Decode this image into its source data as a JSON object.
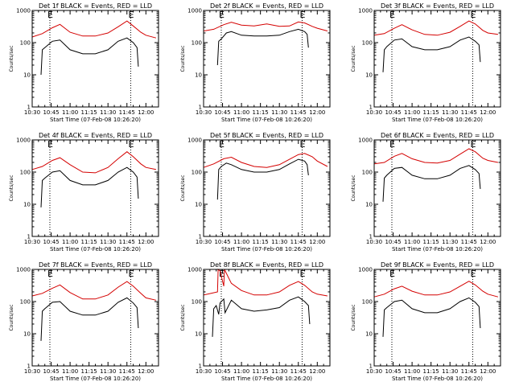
{
  "chart_data": {
    "type": "line",
    "scale": "log",
    "ylim": [
      1,
      1000
    ],
    "yticks": [
      1,
      10,
      100,
      1000
    ],
    "ytick_labels": [
      "1",
      "10",
      "100",
      "1000"
    ],
    "xlim": [
      "10:30",
      "12:10"
    ],
    "xticks": [
      "10:30",
      "10:45",
      "11:00",
      "11:15",
      "11:30",
      "11:45",
      "12:00"
    ],
    "xlabel": "Start Time (07-Feb-08 10:26:20)",
    "ylabel": "Counts/sec",
    "vertical_dotted_lines": [
      "10:44",
      "11:48"
    ],
    "markers": [
      {
        "time": "10:44",
        "label": "E"
      },
      {
        "time": "11:48",
        "label": "E"
      }
    ],
    "colors": {
      "events": "#000000",
      "lld": "#d40000"
    },
    "panels": [
      {
        "title": "Det 1f BLACK = Events, RED = LLD",
        "series": [
          {
            "legend_word": "LLD",
            "color": "red",
            "times": [
              "10:30",
              "10:38",
              "10:46",
              "10:52",
              "11:00",
              "11:10",
              "11:20",
              "11:30",
              "11:38",
              "11:45",
              "11:50",
              "11:56",
              "12:00",
              "12:08"
            ],
            "values": [
              150,
              190,
              290,
              370,
              210,
              160,
              160,
              200,
              310,
              470,
              330,
              210,
              170,
              140
            ]
          },
          {
            "legend_word": "Events",
            "color": "black",
            "times": [
              "10:37",
              "10:38",
              "10:40",
              "10:46",
              "10:52",
              "11:00",
              "11:10",
              "11:20",
              "11:30",
              "11:38",
              "11:45",
              "11:50",
              "11:53",
              "11:54"
            ],
            "values": [
              10,
              60,
              70,
              110,
              120,
              60,
              45,
              45,
              60,
              110,
              140,
              100,
              70,
              18
            ]
          }
        ]
      },
      {
        "title": "Det 2f BLACK = Events, RED = LLD",
        "series": [
          {
            "legend_word": "LLD",
            "color": "red",
            "times": [
              "10:30",
              "10:38",
              "10:46",
              "10:52",
              "11:00",
              "11:10",
              "11:20",
              "11:30",
              "11:38",
              "11:45",
              "11:50",
              "11:56",
              "12:00",
              "12:08"
            ],
            "values": [
              230,
              260,
              360,
              430,
              350,
              330,
              380,
              320,
              330,
              440,
              410,
              320,
              280,
              230
            ]
          },
          {
            "legend_word": "Events",
            "color": "black",
            "times": [
              "10:41",
              "10:42",
              "10:44",
              "10:48",
              "10:52",
              "11:00",
              "11:10",
              "11:20",
              "11:30",
              "11:38",
              "11:45",
              "11:50",
              "11:52",
              "11:53"
            ],
            "values": [
              20,
              110,
              130,
              200,
              220,
              170,
              160,
              160,
              170,
              220,
              260,
              220,
              180,
              70
            ]
          }
        ]
      },
      {
        "title": "Det 3f BLACK = Events, RED = LLD",
        "series": [
          {
            "legend_word": "LLD",
            "color": "red",
            "times": [
              "10:30",
              "10:38",
              "10:46",
              "10:52",
              "11:00",
              "11:10",
              "11:20",
              "11:30",
              "11:38",
              "11:45",
              "11:50",
              "11:56",
              "12:00",
              "12:08"
            ],
            "values": [
              170,
              190,
              280,
              360,
              250,
              180,
              170,
              210,
              320,
              470,
              380,
              240,
              200,
              180
            ]
          },
          {
            "legend_word": "Events",
            "color": "black",
            "times": [
              "10:37",
              "10:38",
              "10:40",
              "10:46",
              "10:52",
              "11:00",
              "11:10",
              "11:20",
              "11:30",
              "11:38",
              "11:45",
              "11:50",
              "11:53",
              "11:54"
            ],
            "values": [
              12,
              60,
              75,
              120,
              130,
              75,
              60,
              60,
              75,
              120,
              150,
              110,
              85,
              25
            ]
          }
        ]
      },
      {
        "title": "Det 4f BLACK = Events, RED = LLD",
        "series": [
          {
            "legend_word": "LLD",
            "color": "red",
            "times": [
              "10:30",
              "10:38",
              "10:46",
              "10:52",
              "11:00",
              "11:10",
              "11:20",
              "11:30",
              "11:38",
              "11:45",
              "11:50",
              "11:56",
              "12:00",
              "12:08"
            ],
            "values": [
              120,
              150,
              230,
              280,
              170,
              100,
              95,
              140,
              260,
              430,
              300,
              180,
              140,
              120
            ]
          },
          {
            "legend_word": "Events",
            "color": "black",
            "times": [
              "10:37",
              "10:38",
              "10:40",
              "10:46",
              "10:52",
              "11:00",
              "11:10",
              "11:20",
              "11:30",
              "11:38",
              "11:45",
              "11:50",
              "11:53",
              "11:54"
            ],
            "values": [
              8,
              55,
              65,
              100,
              110,
              55,
              40,
              40,
              55,
              100,
              140,
              100,
              70,
              15
            ]
          }
        ]
      },
      {
        "title": "Det 5f BLACK = Events, RED = LLD",
        "series": [
          {
            "legend_word": "LLD",
            "color": "red",
            "times": [
              "10:30",
              "10:38",
              "10:46",
              "10:52",
              "11:00",
              "11:10",
              "11:20",
              "11:30",
              "11:38",
              "11:45",
              "11:50",
              "11:56",
              "12:00",
              "12:08"
            ],
            "values": [
              140,
              180,
              260,
              290,
              200,
              150,
              140,
              170,
              250,
              350,
              380,
              300,
              220,
              150
            ]
          },
          {
            "legend_word": "Events",
            "color": "black",
            "times": [
              "10:41",
              "10:42",
              "10:44",
              "10:48",
              "10:52",
              "11:00",
              "11:10",
              "11:20",
              "11:30",
              "11:38",
              "11:45",
              "11:50",
              "11:52",
              "11:53"
            ],
            "values": [
              14,
              120,
              150,
              190,
              170,
              120,
              100,
              100,
              120,
              180,
              250,
              220,
              170,
              80
            ]
          }
        ]
      },
      {
        "title": "Det 6f BLACK = Events, RED = LLD",
        "series": [
          {
            "legend_word": "LLD",
            "color": "red",
            "times": [
              "10:30",
              "10:38",
              "10:46",
              "10:52",
              "11:00",
              "11:10",
              "11:20",
              "11:30",
              "11:38",
              "11:45",
              "11:50",
              "11:56",
              "12:00",
              "12:08"
            ],
            "values": [
              180,
              200,
              310,
              380,
              260,
              200,
              190,
              230,
              360,
              530,
              430,
              270,
              230,
              200
            ]
          },
          {
            "legend_word": "Events",
            "color": "black",
            "times": [
              "10:37",
              "10:38",
              "10:40",
              "10:46",
              "10:52",
              "11:00",
              "11:10",
              "11:20",
              "11:30",
              "11:38",
              "11:45",
              "11:50",
              "11:53",
              "11:54"
            ],
            "values": [
              12,
              65,
              80,
              130,
              140,
              80,
              62,
              62,
              80,
              130,
              160,
              120,
              90,
              30
            ]
          }
        ]
      },
      {
        "title": "Det 7f BLACK = Events, RED = LLD",
        "series": [
          {
            "legend_word": "LLD",
            "color": "red",
            "times": [
              "10:30",
              "10:38",
              "10:46",
              "10:52",
              "11:00",
              "11:10",
              "11:20",
              "11:30",
              "11:38",
              "11:45",
              "11:50",
              "11:56",
              "12:00",
              "12:08"
            ],
            "values": [
              150,
              180,
              260,
              330,
              190,
              120,
              120,
              160,
              280,
              420,
              300,
              180,
              130,
              110
            ]
          },
          {
            "legend_word": "Events",
            "color": "black",
            "times": [
              "10:37",
              "10:38",
              "10:40",
              "10:46",
              "10:52",
              "11:00",
              "11:10",
              "11:20",
              "11:30",
              "11:38",
              "11:45",
              "11:50",
              "11:53",
              "11:54"
            ],
            "values": [
              6,
              50,
              60,
              95,
              100,
              50,
              38,
              38,
              50,
              95,
              130,
              90,
              65,
              15
            ]
          }
        ]
      },
      {
        "title": "Det 8f BLACK = Events, RED = LLD",
        "series": [
          {
            "legend_word": "LLD",
            "color": "red",
            "times": [
              "10:30",
              "10:36",
              "10:41",
              "10:41.5",
              "10:43",
              "10:46",
              "10:46.5",
              "10:52",
              "11:00",
              "11:10",
              "11:20",
              "11:30",
              "11:38",
              "11:45",
              "11:50",
              "11:56",
              "12:00",
              "12:08"
            ],
            "values": [
              160,
              180,
              200,
              1000,
              900,
              300,
              1000,
              370,
              220,
              160,
              160,
              200,
              320,
              420,
              320,
              200,
              170,
              150
            ]
          },
          {
            "legend_word": "Events",
            "color": "black",
            "times": [
              "10:37",
              "10:38",
              "10:40",
              "10:42",
              "10:43",
              "10:46",
              "10:47",
              "10:52",
              "11:00",
              "11:10",
              "11:20",
              "11:30",
              "11:38",
              "11:45",
              "11:50",
              "11:53",
              "11:54"
            ],
            "values": [
              8,
              60,
              75,
              40,
              90,
              120,
              45,
              110,
              60,
              50,
              55,
              65,
              110,
              140,
              100,
              75,
              20
            ]
          }
        ]
      },
      {
        "title": "Det 9f BLACK = Events, RED = LLD",
        "series": [
          {
            "legend_word": "LLD",
            "color": "red",
            "times": [
              "10:30",
              "10:38",
              "10:46",
              "10:52",
              "11:00",
              "11:10",
              "11:20",
              "11:30",
              "11:38",
              "11:45",
              "11:50",
              "11:56",
              "12:00",
              "12:08"
            ],
            "values": [
              140,
              170,
              250,
              300,
              210,
              160,
              160,
              200,
              300,
              430,
              330,
              210,
              170,
              140
            ]
          },
          {
            "legend_word": "Events",
            "color": "black",
            "times": [
              "10:37",
              "10:38",
              "10:40",
              "10:46",
              "10:52",
              "11:00",
              "11:10",
              "11:20",
              "11:30",
              "11:38",
              "11:45",
              "11:50",
              "11:53",
              "11:54"
            ],
            "values": [
              8,
              55,
              65,
              100,
              110,
              60,
              45,
              45,
              60,
              100,
              130,
              95,
              70,
              15
            ]
          }
        ]
      }
    ]
  }
}
